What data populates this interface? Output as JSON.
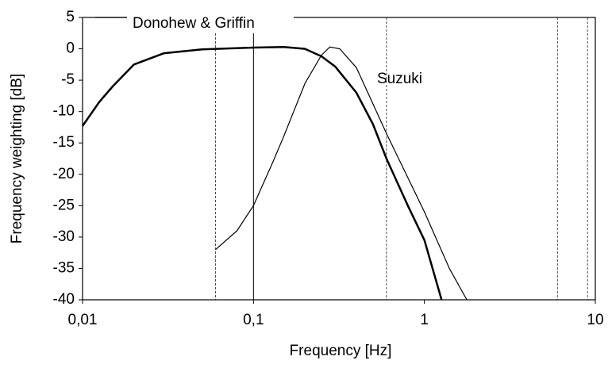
{
  "chart_data": {
    "type": "line",
    "xlabel": "Frequency [Hz]",
    "ylabel": "Frequency weighting [dB]",
    "xscale": "log",
    "xlim": [
      0.01,
      10
    ],
    "xticks": [
      {
        "value": 0.01,
        "label": "0,01"
      },
      {
        "value": 0.1,
        "label": "0,1"
      },
      1,
      10
    ],
    "ylim": [
      -40,
      5
    ],
    "yticks": [
      5,
      0,
      -5,
      -10,
      -15,
      -20,
      -25,
      -30,
      -35,
      -40
    ],
    "reference_lines": [
      {
        "x": 0.06,
        "style": "dashed"
      },
      {
        "x": 0.1,
        "style": "solid"
      },
      {
        "x": 0.6,
        "style": "dashed"
      },
      {
        "x": 6,
        "style": "dashed"
      },
      {
        "x": 9,
        "style": "dashed"
      }
    ],
    "series": [
      {
        "name": "Donohew & Griffin",
        "color": "#000000",
        "width": 2.5,
        "x": [
          0.01,
          0.0125,
          0.015,
          0.02,
          0.03,
          0.05,
          0.1,
          0.15,
          0.2,
          0.25,
          0.3,
          0.4,
          0.5,
          0.6,
          0.8,
          1,
          1.26
        ],
        "values": [
          -12.3,
          -8.5,
          -6,
          -2.5,
          -0.7,
          -0.1,
          0.2,
          0.3,
          0,
          -1.2,
          -2.8,
          -7,
          -12,
          -17.5,
          -25,
          -30.5,
          -40
        ]
      },
      {
        "name": "Suzuki",
        "color": "#000000",
        "width": 1.2,
        "x": [
          0.06,
          0.08,
          0.1,
          0.13,
          0.15,
          0.2,
          0.25,
          0.28,
          0.32,
          0.4,
          0.6,
          1,
          1.4,
          1.77
        ],
        "values": [
          -32,
          -29,
          -25,
          -18,
          -14,
          -5.5,
          -1,
          0.3,
          0,
          -3,
          -13.5,
          -26,
          -35,
          -40
        ]
      }
    ]
  }
}
